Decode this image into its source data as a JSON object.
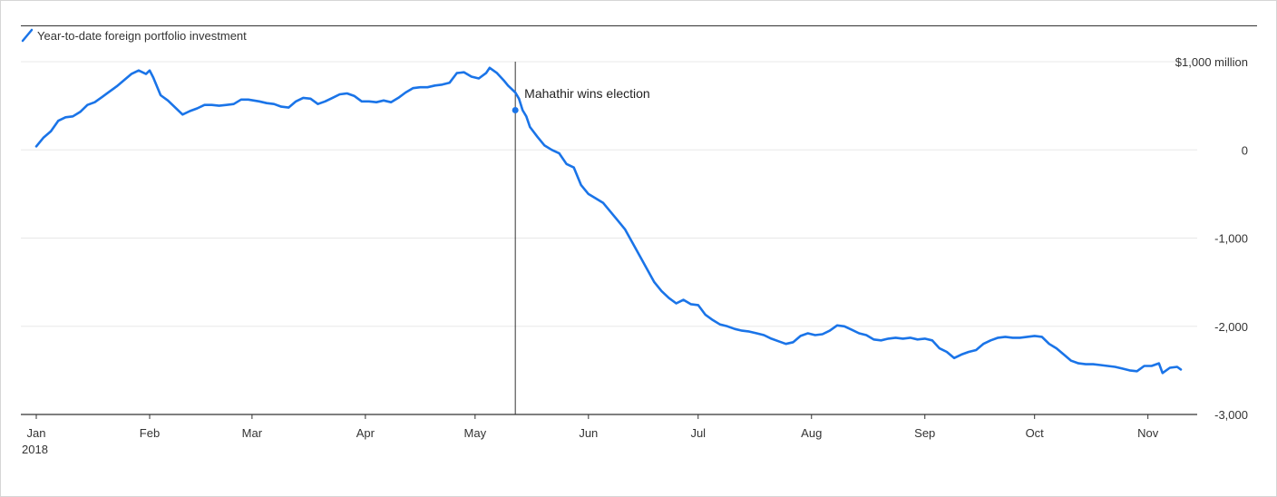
{
  "chart_data": {
    "type": "line",
    "title": "",
    "xlabel": "",
    "ylabel": "",
    "legend": {
      "placement": "top-left",
      "entries": [
        "Year-to-date foreign portfolio investment"
      ]
    },
    "grid": true,
    "ylim": [
      -3000,
      1000
    ],
    "yticks": [
      {
        "value": 1000,
        "label": "$1,000 million"
      },
      {
        "value": 0,
        "label": "0"
      },
      {
        "value": -1000,
        "label": "-1,000"
      },
      {
        "value": -2000,
        "label": "-2,000"
      },
      {
        "value": -3000,
        "label": "-3,000"
      }
    ],
    "xlim": [
      "2018-01-01",
      "2018-11-11"
    ],
    "xticks": [
      {
        "date": "2018-01-01",
        "label": "Jan",
        "sublabel": "2018"
      },
      {
        "date": "2018-02-01",
        "label": "Feb"
      },
      {
        "date": "2018-03-01",
        "label": "Mar"
      },
      {
        "date": "2018-04-01",
        "label": "Apr"
      },
      {
        "date": "2018-05-01",
        "label": "May"
      },
      {
        "date": "2018-06-01",
        "label": "Jun"
      },
      {
        "date": "2018-07-01",
        "label": "Jul"
      },
      {
        "date": "2018-08-01",
        "label": "Aug"
      },
      {
        "date": "2018-09-01",
        "label": "Sep"
      },
      {
        "date": "2018-10-01",
        "label": "Oct"
      },
      {
        "date": "2018-11-01",
        "label": "Nov"
      }
    ],
    "series": [
      {
        "name": "Year-to-date foreign portfolio investment",
        "color": "#1a74e8",
        "points": [
          [
            "2018-01-01",
            40
          ],
          [
            "2018-01-03",
            140
          ],
          [
            "2018-01-05",
            210
          ],
          [
            "2018-01-07",
            330
          ],
          [
            "2018-01-09",
            370
          ],
          [
            "2018-01-11",
            380
          ],
          [
            "2018-01-13",
            430
          ],
          [
            "2018-01-15",
            510
          ],
          [
            "2018-01-17",
            540
          ],
          [
            "2018-01-19",
            600
          ],
          [
            "2018-01-21",
            660
          ],
          [
            "2018-01-23",
            720
          ],
          [
            "2018-01-25",
            790
          ],
          [
            "2018-01-27",
            860
          ],
          [
            "2018-01-29",
            900
          ],
          [
            "2018-01-31",
            860
          ],
          [
            "2018-02-01",
            900
          ],
          [
            "2018-02-02",
            820
          ],
          [
            "2018-02-04",
            620
          ],
          [
            "2018-02-06",
            560
          ],
          [
            "2018-02-08",
            480
          ],
          [
            "2018-02-10",
            400
          ],
          [
            "2018-02-12",
            440
          ],
          [
            "2018-02-14",
            470
          ],
          [
            "2018-02-16",
            510
          ],
          [
            "2018-02-18",
            510
          ],
          [
            "2018-02-20",
            500
          ],
          [
            "2018-02-22",
            510
          ],
          [
            "2018-02-24",
            520
          ],
          [
            "2018-02-26",
            570
          ],
          [
            "2018-02-28",
            570
          ],
          [
            "2018-03-03",
            550
          ],
          [
            "2018-03-05",
            530
          ],
          [
            "2018-03-07",
            520
          ],
          [
            "2018-03-09",
            490
          ],
          [
            "2018-03-11",
            480
          ],
          [
            "2018-03-13",
            550
          ],
          [
            "2018-03-15",
            590
          ],
          [
            "2018-03-17",
            580
          ],
          [
            "2018-03-19",
            520
          ],
          [
            "2018-03-21",
            550
          ],
          [
            "2018-03-23",
            590
          ],
          [
            "2018-03-25",
            630
          ],
          [
            "2018-03-27",
            640
          ],
          [
            "2018-03-29",
            610
          ],
          [
            "2018-03-31",
            550
          ],
          [
            "2018-04-02",
            550
          ],
          [
            "2018-04-04",
            540
          ],
          [
            "2018-04-06",
            560
          ],
          [
            "2018-04-08",
            540
          ],
          [
            "2018-04-10",
            590
          ],
          [
            "2018-04-12",
            650
          ],
          [
            "2018-04-14",
            700
          ],
          [
            "2018-04-16",
            710
          ],
          [
            "2018-04-18",
            710
          ],
          [
            "2018-04-20",
            730
          ],
          [
            "2018-04-22",
            740
          ],
          [
            "2018-04-24",
            760
          ],
          [
            "2018-04-26",
            870
          ],
          [
            "2018-04-28",
            880
          ],
          [
            "2018-04-30",
            830
          ],
          [
            "2018-05-02",
            810
          ],
          [
            "2018-05-04",
            870
          ],
          [
            "2018-05-05",
            930
          ],
          [
            "2018-05-07",
            870
          ],
          [
            "2018-05-09",
            780
          ],
          [
            "2018-05-10",
            730
          ],
          [
            "2018-05-12",
            650
          ],
          [
            "2018-05-13",
            580
          ],
          [
            "2018-05-14",
            450
          ],
          [
            "2018-05-15",
            380
          ],
          [
            "2018-05-16",
            260
          ],
          [
            "2018-05-18",
            150
          ],
          [
            "2018-05-20",
            50
          ],
          [
            "2018-05-22",
            0
          ],
          [
            "2018-05-24",
            -40
          ],
          [
            "2018-05-26",
            -160
          ],
          [
            "2018-05-28",
            -200
          ],
          [
            "2018-05-30",
            -400
          ],
          [
            "2018-06-01",
            -500
          ],
          [
            "2018-06-03",
            -550
          ],
          [
            "2018-06-05",
            -600
          ],
          [
            "2018-06-07",
            -700
          ],
          [
            "2018-06-09",
            -800
          ],
          [
            "2018-06-11",
            -900
          ],
          [
            "2018-06-13",
            -1050
          ],
          [
            "2018-06-15",
            -1200
          ],
          [
            "2018-06-17",
            -1350
          ],
          [
            "2018-06-19",
            -1500
          ],
          [
            "2018-06-21",
            -1600
          ],
          [
            "2018-06-23",
            -1680
          ],
          [
            "2018-06-25",
            -1740
          ],
          [
            "2018-06-27",
            -1700
          ],
          [
            "2018-06-29",
            -1750
          ],
          [
            "2018-07-01",
            -1760
          ],
          [
            "2018-07-03",
            -1870
          ],
          [
            "2018-07-05",
            -1930
          ],
          [
            "2018-07-07",
            -1980
          ],
          [
            "2018-07-09",
            -2000
          ],
          [
            "2018-07-11",
            -2030
          ],
          [
            "2018-07-13",
            -2050
          ],
          [
            "2018-07-15",
            -2060
          ],
          [
            "2018-07-17",
            -2080
          ],
          [
            "2018-07-19",
            -2100
          ],
          [
            "2018-07-21",
            -2140
          ],
          [
            "2018-07-23",
            -2170
          ],
          [
            "2018-07-25",
            -2200
          ],
          [
            "2018-07-27",
            -2180
          ],
          [
            "2018-07-29",
            -2110
          ],
          [
            "2018-07-31",
            -2080
          ],
          [
            "2018-08-02",
            -2100
          ],
          [
            "2018-08-04",
            -2090
          ],
          [
            "2018-08-06",
            -2050
          ],
          [
            "2018-08-08",
            -1990
          ],
          [
            "2018-08-10",
            -2000
          ],
          [
            "2018-08-12",
            -2040
          ],
          [
            "2018-08-14",
            -2080
          ],
          [
            "2018-08-16",
            -2100
          ],
          [
            "2018-08-18",
            -2150
          ],
          [
            "2018-08-20",
            -2160
          ],
          [
            "2018-08-22",
            -2140
          ],
          [
            "2018-08-24",
            -2130
          ],
          [
            "2018-08-26",
            -2140
          ],
          [
            "2018-08-28",
            -2130
          ],
          [
            "2018-08-30",
            -2150
          ],
          [
            "2018-09-01",
            -2140
          ],
          [
            "2018-09-03",
            -2160
          ],
          [
            "2018-09-05",
            -2250
          ],
          [
            "2018-09-07",
            -2290
          ],
          [
            "2018-09-09",
            -2360
          ],
          [
            "2018-09-11",
            -2320
          ],
          [
            "2018-09-13",
            -2290
          ],
          [
            "2018-09-15",
            -2270
          ],
          [
            "2018-09-17",
            -2200
          ],
          [
            "2018-09-19",
            -2160
          ],
          [
            "2018-09-21",
            -2130
          ],
          [
            "2018-09-23",
            -2120
          ],
          [
            "2018-09-25",
            -2130
          ],
          [
            "2018-09-27",
            -2130
          ],
          [
            "2018-09-29",
            -2120
          ],
          [
            "2018-10-01",
            -2110
          ],
          [
            "2018-10-03",
            -2120
          ],
          [
            "2018-10-05",
            -2200
          ],
          [
            "2018-10-07",
            -2250
          ],
          [
            "2018-10-09",
            -2320
          ],
          [
            "2018-10-11",
            -2390
          ],
          [
            "2018-10-13",
            -2420
          ],
          [
            "2018-10-15",
            -2430
          ],
          [
            "2018-10-17",
            -2430
          ],
          [
            "2018-10-19",
            -2440
          ],
          [
            "2018-10-21",
            -2450
          ],
          [
            "2018-10-23",
            -2460
          ],
          [
            "2018-10-25",
            -2480
          ],
          [
            "2018-10-27",
            -2500
          ],
          [
            "2018-10-29",
            -2510
          ],
          [
            "2018-10-31",
            -2450
          ],
          [
            "2018-11-02",
            -2450
          ],
          [
            "2018-11-04",
            -2420
          ],
          [
            "2018-11-05",
            -2530
          ],
          [
            "2018-11-07",
            -2470
          ],
          [
            "2018-11-09",
            -2460
          ],
          [
            "2018-11-10",
            -2490
          ]
        ]
      }
    ],
    "annotations": [
      {
        "date": "2018-05-12",
        "value": 450,
        "label": "Mahathir wins election"
      }
    ]
  }
}
